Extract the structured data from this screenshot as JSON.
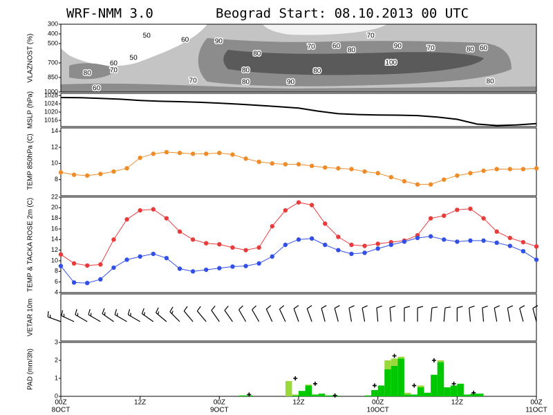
{
  "header": {
    "model": "WRF-NMM 3.0",
    "title": "Beograd Start: 08.10.2013 00 UTC"
  },
  "chart_data": [
    {
      "type": "contour",
      "y_label": "VLAZNOST (%)",
      "xlim": [
        0,
        72
      ],
      "ylim": [
        1000,
        300
      ],
      "yticks": [
        300,
        400,
        500,
        700,
        850,
        1000
      ],
      "contour_labels": [
        {
          "x": 13,
          "y": 420,
          "value": 50
        },
        {
          "x": 18.8,
          "y": 464,
          "value": 60
        },
        {
          "x": 23.9,
          "y": 479,
          "value": 90
        },
        {
          "x": 29.7,
          "y": 607,
          "value": 80
        },
        {
          "x": 37.9,
          "y": 536,
          "value": 70
        },
        {
          "x": 41.7,
          "y": 529,
          "value": 60
        },
        {
          "x": 44,
          "y": 571,
          "value": 80
        },
        {
          "x": 46.9,
          "y": 421,
          "value": 70
        },
        {
          "x": 51,
          "y": 529,
          "value": 90
        },
        {
          "x": 56,
          "y": 550,
          "value": 70
        },
        {
          "x": 62,
          "y": 564,
          "value": 80
        },
        {
          "x": 64,
          "y": 550,
          "value": 60
        },
        {
          "x": 11,
          "y": 650,
          "value": 50
        },
        {
          "x": 8,
          "y": 707,
          "value": 60
        },
        {
          "x": 8,
          "y": 779,
          "value": 70
        },
        {
          "x": 4,
          "y": 807,
          "value": 80
        },
        {
          "x": 28,
          "y": 779,
          "value": 80
        },
        {
          "x": 38.8,
          "y": 786,
          "value": 80
        },
        {
          "x": 50,
          "y": 700,
          "value": 100
        },
        {
          "x": 20,
          "y": 886,
          "value": 70
        },
        {
          "x": 28,
          "y": 900,
          "value": 80
        },
        {
          "x": 34.8,
          "y": 900,
          "value": 90
        },
        {
          "x": 65,
          "y": 893,
          "value": 80
        },
        {
          "x": 5.4,
          "y": 964,
          "value": 60
        }
      ]
    },
    {
      "type": "line",
      "y_label": "MSLP (hPa)",
      "xlim": [
        0,
        72
      ],
      "ylim": [
        1013,
        1029
      ],
      "yticks": [
        1016,
        1020,
        1024,
        1028
      ],
      "markers": false,
      "x": [
        0,
        3,
        6,
        9,
        12,
        15,
        18,
        21,
        24,
        27,
        30,
        33,
        36,
        39,
        42,
        45,
        48,
        51,
        54,
        57,
        60,
        63,
        66,
        69,
        72
      ],
      "series": [
        {
          "color": "#000000",
          "values": [
            1027.0,
            1026.9,
            1026.6,
            1026.2,
            1025.6,
            1025.2,
            1025.0,
            1024.7,
            1024.3,
            1023.8,
            1023.2,
            1022.6,
            1021.9,
            1020.4,
            1019.2,
            1018.8,
            1018.6,
            1018.5,
            1018.3,
            1017.6,
            1016.5,
            1014.2,
            1013.5,
            1013.8,
            1014.4
          ]
        }
      ]
    },
    {
      "type": "line",
      "y_label": "TEMP 850hPa (C)",
      "xlim": [
        0,
        72
      ],
      "ylim": [
        6,
        14.4
      ],
      "yticks": [
        8,
        10,
        12,
        14
      ],
      "markers": true,
      "x": [
        0,
        2,
        4,
        6,
        8,
        10,
        12,
        14,
        16,
        18,
        20,
        22,
        24,
        26,
        28,
        30,
        32,
        34,
        36,
        38,
        40,
        42,
        44,
        46,
        48,
        50,
        52,
        54,
        56,
        58,
        60,
        62,
        64,
        66,
        68,
        70,
        72
      ],
      "series": [
        {
          "color": "#f08c28",
          "values": [
            8.9,
            8.6,
            8.5,
            8.7,
            9.0,
            9.4,
            10.7,
            11.2,
            11.4,
            11.3,
            11.2,
            11.2,
            11.3,
            11.1,
            10.6,
            10.2,
            10.0,
            9.9,
            9.9,
            9.7,
            9.5,
            9.4,
            9.3,
            9.0,
            8.8,
            8.3,
            7.8,
            7.4,
            7.4,
            8.0,
            8.5,
            8.8,
            9.1,
            9.3,
            9.3,
            9.3,
            9.4
          ]
        }
      ]
    },
    {
      "type": "line",
      "y_label": "TEMP & TACKA ROSE 2m (C)",
      "xlim": [
        0,
        72
      ],
      "ylim": [
        4,
        22
      ],
      "yticks": [
        4,
        6,
        8,
        10,
        12,
        14,
        16,
        18,
        20,
        22
      ],
      "markers": true,
      "x": [
        0,
        2,
        4,
        6,
        8,
        10,
        12,
        14,
        16,
        18,
        20,
        22,
        24,
        26,
        28,
        30,
        32,
        34,
        36,
        38,
        40,
        42,
        44,
        46,
        48,
        50,
        52,
        54,
        56,
        58,
        60,
        62,
        64,
        66,
        68,
        70,
        72
      ],
      "series": [
        {
          "color": "#e83c3c",
          "values": [
            11.2,
            9.5,
            9.1,
            9.3,
            14.0,
            17.8,
            19.5,
            19.7,
            18.0,
            15.5,
            14.0,
            13.3,
            13.1,
            12.5,
            12.0,
            12.5,
            16.5,
            19.5,
            21.0,
            20.5,
            17.0,
            14.5,
            13.0,
            12.8,
            13.2,
            13.5,
            13.8,
            14.8,
            18.0,
            18.5,
            19.6,
            19.8,
            18.0,
            15.5,
            14.3,
            13.5,
            12.7
          ]
        },
        {
          "color": "#3250e6",
          "values": [
            9.0,
            5.9,
            5.8,
            6.5,
            8.7,
            10.2,
            10.8,
            11.3,
            10.5,
            8.5,
            8.0,
            8.3,
            8.6,
            8.9,
            9.0,
            9.5,
            10.8,
            13.0,
            14.0,
            14.2,
            13.0,
            12.0,
            11.3,
            11.5,
            12.3,
            13.0,
            13.6,
            14.3,
            14.6,
            14.0,
            13.6,
            13.8,
            13.8,
            13.4,
            12.8,
            11.8,
            10.2
          ]
        }
      ]
    },
    {
      "type": "barbs",
      "y_label": "VETAR 10m",
      "xlim": [
        0,
        72
      ],
      "x": [
        0,
        2,
        4,
        6,
        8,
        10,
        12,
        14,
        16,
        18,
        20,
        22,
        24,
        26,
        28,
        30,
        32,
        34,
        36,
        38,
        40,
        42,
        44,
        46,
        48,
        50,
        52,
        54,
        56,
        58,
        60,
        62,
        64,
        66,
        68,
        70,
        72
      ],
      "direction": [
        290,
        295,
        300,
        300,
        305,
        300,
        300,
        305,
        310,
        315,
        320,
        320,
        325,
        325,
        330,
        330,
        335,
        335,
        340,
        340,
        345,
        345,
        350,
        350,
        355,
        355,
        0,
        0,
        5,
        5,
        0,
        355,
        355,
        350,
        350,
        345,
        345
      ],
      "speed": [
        15,
        15,
        15,
        15,
        15,
        15,
        15,
        15,
        15,
        15,
        10,
        10,
        10,
        10,
        10,
        10,
        10,
        10,
        10,
        10,
        10,
        10,
        10,
        10,
        10,
        10,
        10,
        10,
        10,
        10,
        10,
        10,
        10,
        10,
        10,
        10,
        10
      ]
    },
    {
      "type": "bar",
      "y_label": "PAD (mm/3h)",
      "xlim": [
        0,
        72
      ],
      "ylim": [
        0,
        3
      ],
      "yticks": [
        0,
        1,
        2,
        3
      ],
      "xticks": [
        {
          "value": 0,
          "label": "00Z"
        },
        {
          "value": 12,
          "label": "12Z"
        },
        {
          "value": 24,
          "label": "00Z"
        },
        {
          "value": 36,
          "label": "12Z"
        },
        {
          "value": 48,
          "label": "00Z"
        },
        {
          "value": 60,
          "label": "12Z"
        },
        {
          "value": 72,
          "label": "00Z"
        }
      ],
      "dates": [
        {
          "value": 0,
          "label": "8OCT"
        },
        {
          "value": 24,
          "label": "9OCT"
        },
        {
          "value": 48,
          "label": "10OCT"
        },
        {
          "value": 72,
          "label": "11OCT"
        }
      ],
      "x": [
        28,
        29,
        35,
        36,
        37,
        38,
        39,
        40,
        41,
        42,
        47,
        48,
        49,
        50,
        51,
        52,
        53,
        54,
        55,
        56,
        57,
        58,
        59,
        60,
        61,
        62,
        63,
        64
      ],
      "series": [
        {
          "color": "#00c800",
          "values": [
            0.05,
            0.05,
            0,
            0.05,
            0.3,
            0.6,
            0.1,
            0.15,
            0.05,
            0.05,
            0.05,
            0.35,
            0.6,
            1.5,
            1.7,
            2.1,
            0.1,
            0.1,
            0.5,
            0.2,
            1.2,
            1.9,
            0.5,
            0.6,
            0.7,
            0.1,
            0.15,
            0.15
          ]
        },
        {
          "color": "#9ad93c",
          "values": [
            0,
            0,
            0.85,
            0.05,
            0,
            0.05,
            0,
            0,
            0,
            0,
            0,
            0,
            0,
            0.5,
            0.4,
            0.1,
            0.1,
            0,
            0.1,
            0,
            0,
            0.1,
            0,
            0,
            0,
            0,
            0,
            0
          ]
        }
      ],
      "points": {
        "x": [
          29,
          36,
          39,
          42,
          48,
          51,
          54,
          57,
          60,
          63
        ],
        "values": [
          0.1,
          1.0,
          0.7,
          0.05,
          0.6,
          2.25,
          0.6,
          2.0,
          0.7,
          0.2
        ]
      }
    }
  ]
}
